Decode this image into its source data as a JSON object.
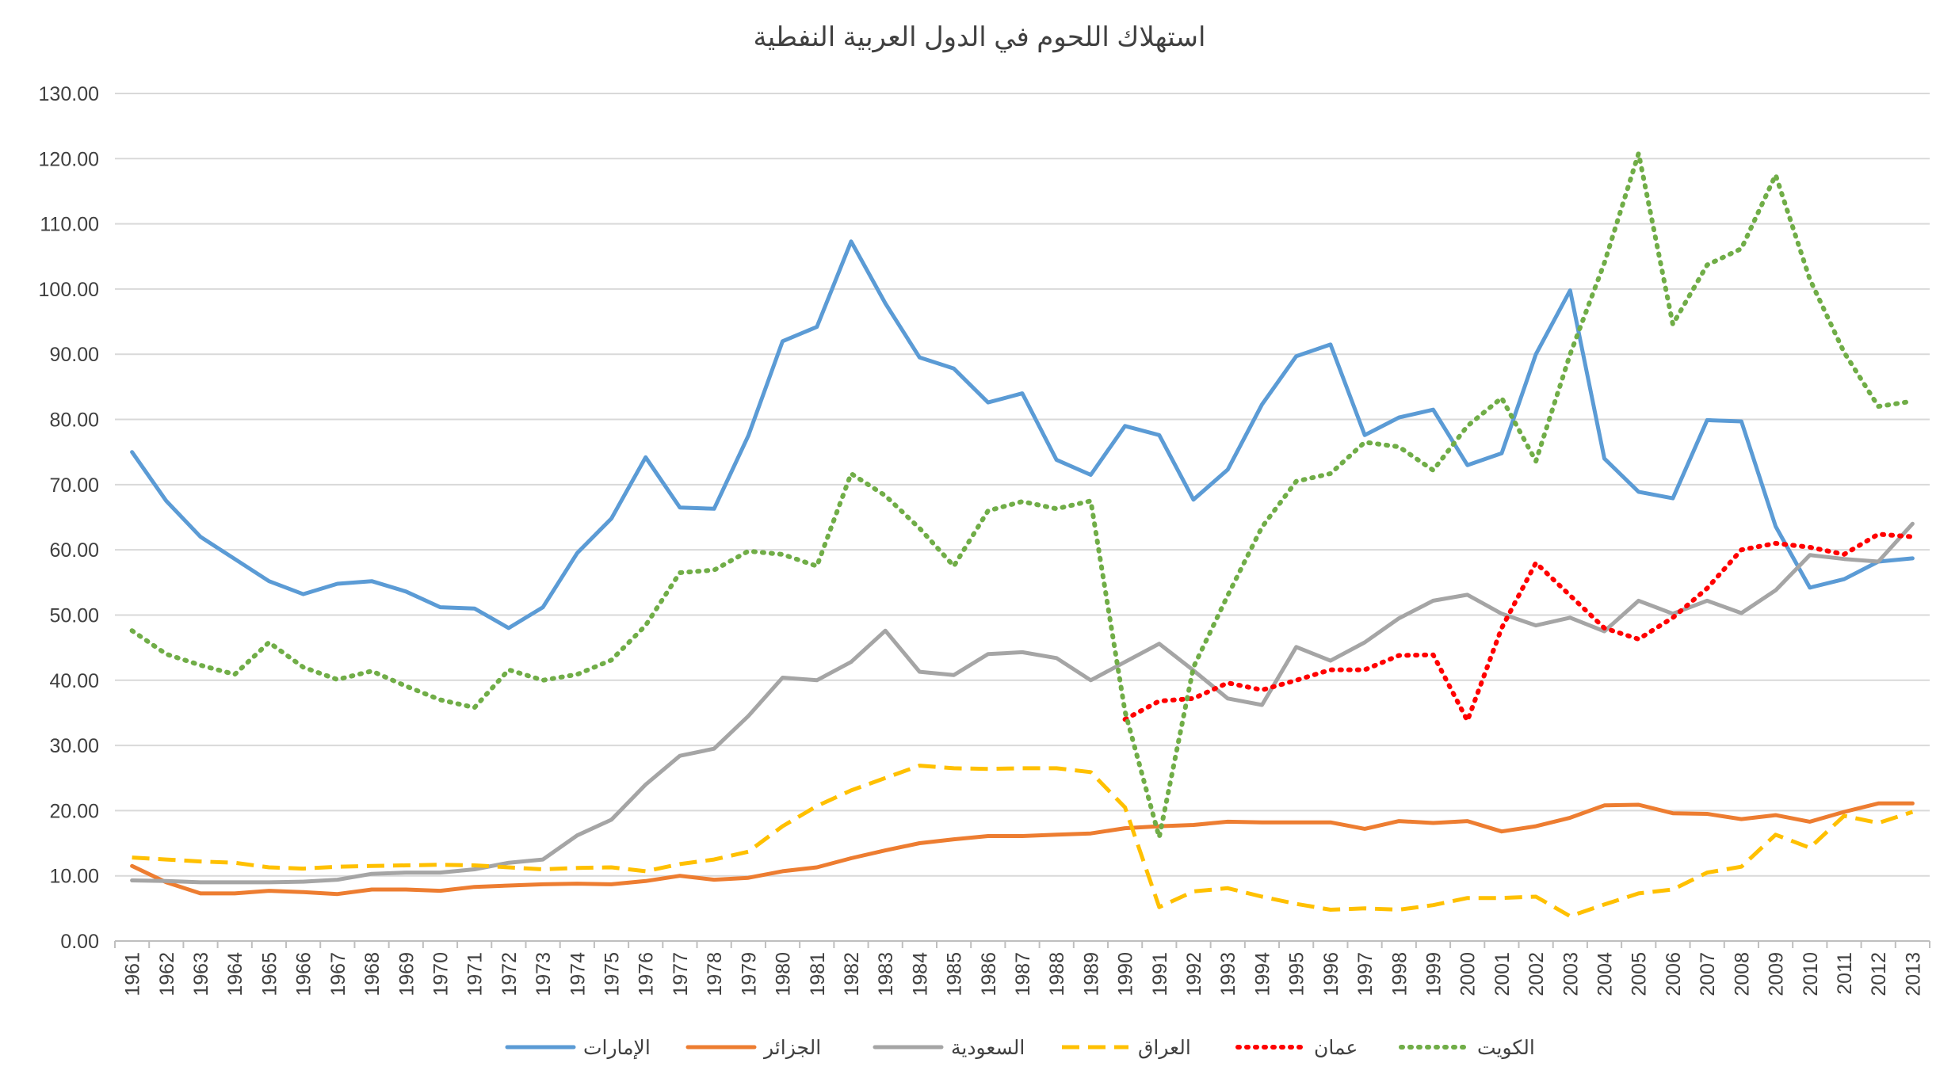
{
  "chart_data": {
    "type": "line",
    "title": "استهلاك اللحوم في الدول العربية النفطية",
    "xlabel": "",
    "ylabel": "",
    "ylim": [
      0,
      130
    ],
    "yticks": [
      "0.00",
      "10.00",
      "20.00",
      "30.00",
      "40.00",
      "50.00",
      "60.00",
      "70.00",
      "80.00",
      "90.00",
      "100.00",
      "110.00",
      "120.00",
      "130.00"
    ],
    "grid": true,
    "legend_position": "bottom",
    "categories": [
      "1961",
      "1962",
      "1963",
      "1964",
      "1965",
      "1966",
      "1967",
      "1968",
      "1969",
      "1970",
      "1971",
      "1972",
      "1973",
      "1974",
      "1975",
      "1976",
      "1977",
      "1978",
      "1979",
      "1980",
      "1981",
      "1982",
      "1983",
      "1984",
      "1985",
      "1986",
      "1987",
      "1988",
      "1989",
      "1990",
      "1991",
      "1992",
      "1993",
      "1994",
      "1995",
      "1996",
      "1997",
      "1998",
      "1999",
      "2000",
      "2001",
      "2002",
      "2003",
      "2004",
      "2005",
      "2006",
      "2007",
      "2008",
      "2009",
      "2010",
      "2011",
      "2012",
      "2013"
    ],
    "series": [
      {
        "name": "الإمارات",
        "color": "#5b9bd5",
        "style": "solid",
        "values": [
          75.0,
          67.5,
          62.0,
          58.6,
          55.2,
          53.2,
          54.8,
          55.2,
          53.6,
          51.2,
          51.0,
          48.0,
          51.2,
          59.5,
          64.8,
          74.2,
          66.5,
          66.3,
          77.5,
          92.0,
          94.2,
          107.3,
          97.8,
          89.5,
          87.8,
          82.6,
          84.0,
          73.8,
          71.5,
          79.0,
          77.6,
          67.7,
          72.3,
          82.3,
          89.7,
          91.5,
          77.6,
          80.3,
          81.5,
          73.0,
          74.8,
          90.0,
          99.8,
          74.0,
          68.9,
          67.9,
          79.9,
          79.7,
          63.6,
          54.2,
          55.5,
          58.2,
          58.7
        ]
      },
      {
        "name": "الجزائر",
        "color": "#ed7d31",
        "style": "solid",
        "values": [
          11.5,
          9.0,
          7.3,
          7.3,
          7.7,
          7.5,
          7.2,
          7.9,
          7.9,
          7.7,
          8.3,
          8.5,
          8.7,
          8.8,
          8.7,
          9.2,
          10.0,
          9.4,
          9.7,
          10.7,
          11.3,
          12.7,
          13.9,
          15.0,
          15.6,
          16.1,
          16.1,
          16.3,
          16.5,
          17.3,
          17.6,
          17.8,
          18.3,
          18.2,
          18.2,
          18.2,
          17.2,
          18.4,
          18.1,
          18.4,
          16.8,
          17.6,
          18.9,
          20.8,
          20.9,
          19.6,
          19.5,
          18.7,
          19.3,
          18.3,
          19.8,
          21.1,
          21.1
        ]
      },
      {
        "name": "السعودية",
        "color": "#a5a5a5",
        "style": "solid",
        "values": [
          9.3,
          9.2,
          9.0,
          9.0,
          9.0,
          9.1,
          9.4,
          10.3,
          10.5,
          10.5,
          11.0,
          12.0,
          12.5,
          16.2,
          18.6,
          24.0,
          28.4,
          29.5,
          34.5,
          40.4,
          40.0,
          42.8,
          47.6,
          41.3,
          40.8,
          44.0,
          44.3,
          43.4,
          40.0,
          42.8,
          45.6,
          41.5,
          37.2,
          36.2,
          45.1,
          43.0,
          45.8,
          49.5,
          52.2,
          53.1,
          50.2,
          48.4,
          49.6,
          47.5,
          52.2,
          50.2,
          52.2,
          50.3,
          53.8,
          59.2,
          58.6,
          58.2,
          64.0
        ]
      },
      {
        "name": "العراق",
        "color": "#ffc000",
        "style": "dashed",
        "values": [
          12.8,
          12.5,
          12.2,
          12.0,
          11.3,
          11.1,
          11.4,
          11.5,
          11.6,
          11.7,
          11.6,
          11.3,
          11.0,
          11.2,
          11.3,
          10.7,
          11.8,
          12.5,
          13.7,
          17.6,
          20.7,
          23.1,
          25.0,
          26.9,
          26.5,
          26.4,
          26.5,
          26.5,
          25.9,
          20.5,
          5.2,
          7.6,
          8.1,
          6.8,
          5.7,
          4.8,
          5.0,
          4.8,
          5.5,
          6.6,
          6.6,
          6.8,
          3.8,
          5.6,
          7.3,
          7.9,
          10.5,
          11.4,
          16.3,
          14.3,
          19.2,
          18.1,
          19.8
        ]
      },
      {
        "name": "عمان",
        "color": "#ff0000",
        "style": "dotted",
        "values": [
          null,
          null,
          null,
          null,
          null,
          null,
          null,
          null,
          null,
          null,
          null,
          null,
          null,
          null,
          null,
          null,
          null,
          null,
          null,
          null,
          null,
          null,
          null,
          null,
          null,
          null,
          null,
          null,
          null,
          34.0,
          36.8,
          37.2,
          39.6,
          38.5,
          40.0,
          41.6,
          41.6,
          43.8,
          43.9,
          33.8,
          48.0,
          58.0,
          53.0,
          48.0,
          46.3,
          49.6,
          54.1,
          60.0,
          61.0,
          60.4,
          59.3,
          62.4,
          62.0
        ]
      },
      {
        "name": "الكويت",
        "color": "#70ad47",
        "style": "dotted",
        "values": [
          47.6,
          44.0,
          42.3,
          40.9,
          45.8,
          42.0,
          40.1,
          41.4,
          39.1,
          37.0,
          35.8,
          41.6,
          40.0,
          40.9,
          43.1,
          48.4,
          56.5,
          56.9,
          59.8,
          59.3,
          57.5,
          71.7,
          68.3,
          63.3,
          57.5,
          66.0,
          67.4,
          66.3,
          67.5,
          35.2,
          15.9,
          42.0,
          53.0,
          63.5,
          70.5,
          71.7,
          76.5,
          75.8,
          72.2,
          79.0,
          83.3,
          73.6,
          90.0,
          104.0,
          120.8,
          94.6,
          103.7,
          106.2,
          117.5,
          101.5,
          90.3,
          82.0,
          82.8
        ]
      }
    ]
  }
}
